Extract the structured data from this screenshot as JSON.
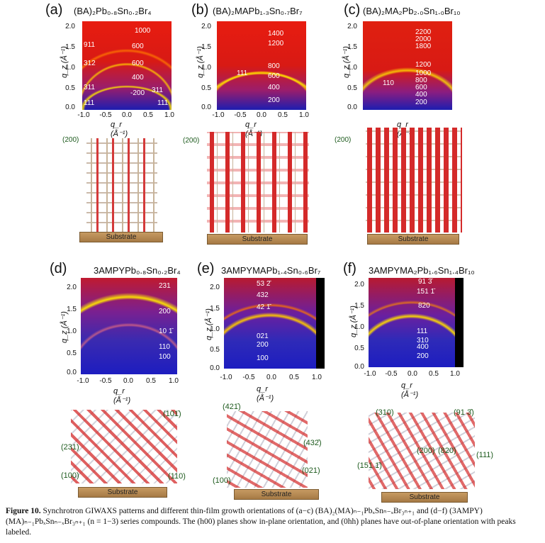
{
  "panels": [
    {
      "label": "(a)",
      "title": "(BA)₂Pb₀.₈Sn₀.₂Br₄",
      "peaks": [
        "1000",
        "911",
        "600",
        "312",
        "600",
        "400",
        "311",
        "-200",
        "311",
        "111",
        "111"
      ],
      "orient": "(200)",
      "substrate": "Substrate",
      "xlabel": "q_r (Å⁻¹)",
      "ylabel": "q_z (Å⁻¹)",
      "xticks": [
        "-1.0",
        "-0.5",
        "0.0",
        "0.5",
        "1.0"
      ],
      "yticks": [
        "2.0",
        "1.5",
        "1.0",
        "0.5",
        "0.0"
      ]
    },
    {
      "label": "(b)",
      "title": "(BA)₂MAPb₁.₃Sn₀.₇Br₇",
      "peaks": [
        "1400",
        "1200",
        "800",
        "111",
        "600",
        "400",
        "200"
      ],
      "orient": "(200)",
      "substrate": "Substrate",
      "xlabel": "q_r (Å⁻¹)",
      "ylabel": "q_z (Å⁻¹)",
      "xticks": [
        "-1.0",
        "-0.5",
        "0.0",
        "0.5",
        "1.0"
      ],
      "yticks": [
        "2.0",
        "1.5",
        "1.0",
        "0.5",
        "0.0"
      ]
    },
    {
      "label": "(c)",
      "title": "(BA)₂MA₂Pb₂.₀Sn₁.₀Br₁₀",
      "peaks": [
        "2200",
        "2000",
        "1800",
        "1200",
        "1000",
        "110",
        "800",
        "600",
        "400",
        "200"
      ],
      "orient": "(200)",
      "substrate": "Substrate",
      "xlabel": "q_r (Å⁻¹)",
      "ylabel": "q_z (Å⁻¹)",
      "xticks": [
        "-1.0",
        "-0.5",
        "0.0",
        "0.5",
        "1.0"
      ],
      "yticks": [
        "2.0",
        "1.5",
        "1.0",
        "0.5",
        "0.0"
      ]
    },
    {
      "label": "(d)",
      "title": "3AMPYPb₀.₈Sn₀.₂Br₄",
      "peaks": [
        "231",
        "200",
        "10 1̄",
        "110",
        "100"
      ],
      "orients": [
        "(101̄)",
        "(231)",
        "(100)",
        "(110)"
      ],
      "substrate": "Substrate",
      "xlabel": "q_r (Å⁻¹)",
      "ylabel": "q_z (Å⁻¹)",
      "xticks": [
        "-1.0",
        "-0.5",
        "0.0",
        "0.5",
        "1.0"
      ],
      "yticks": [
        "2.0",
        "1.5",
        "1.0",
        "0.5",
        "0.0"
      ]
    },
    {
      "label": "(e)",
      "title": "3AMPYMAPb₁.₄Sn₀.₆Br₇",
      "peaks": [
        "53 2̄",
        "432",
        "42 1̄",
        "021",
        "200",
        "100"
      ],
      "orients": [
        "(421̄)",
        "(432̄)",
        "(100)",
        "(021)"
      ],
      "substrate": "Substrate",
      "xlabel": "q_r (Å⁻¹)",
      "ylabel": "q_z (Å⁻¹)",
      "xticks": [
        "-1.0",
        "-0.5",
        "0.0",
        "0.5",
        "1.0"
      ],
      "yticks": [
        "2.0",
        "1.5",
        "1.0",
        "0.5",
        "0.0"
      ]
    },
    {
      "label": "(f)",
      "title": "3AMPYMA₂Pb₁.₆Sn₁.₄Br₁₀",
      "peaks": [
        "91 3̄",
        "151 1̄",
        "820",
        "111",
        "310",
        "400",
        "200"
      ],
      "orients": [
        "(310)",
        "(91 3̄)",
        "(200)",
        "(820)",
        "(151 1̄)",
        "(111)"
      ],
      "substrate": "Substrate",
      "xlabel": "q_r (Å⁻¹)",
      "ylabel": "q_z (Å⁻¹)",
      "xticks": [
        "-1.0",
        "-0.5",
        "0.0",
        "0.5",
        "1.0"
      ],
      "yticks": [
        "2.0",
        "1.5",
        "1.0",
        "0.5",
        "0.0"
      ]
    }
  ],
  "caption": {
    "figure_label": "Figure 10.",
    "text": "Synchrotron GIWAXS patterns and different thin-film growth orientations of (a−c) (BA)₂(MA)ₙ₋₁PbₓSnₙ₋ₓBr₃ₙ₊₁ and (d−f) (3AMPY)(MA)ₙ₋₁PbₓSnₙ₋ₓBr₃ₙ₊₁ (n = 1−3) series compounds. The (h00) planes show in-plane orientation, and (0hh) planes have out-of-plane orientation with peaks labeled."
  },
  "colors": {
    "pattern_low": "#1a1aa8",
    "pattern_mid": "#d01818",
    "pattern_high": "#ffe000",
    "orient_label": "#1d5a1d",
    "substrate": "#b8874f"
  }
}
